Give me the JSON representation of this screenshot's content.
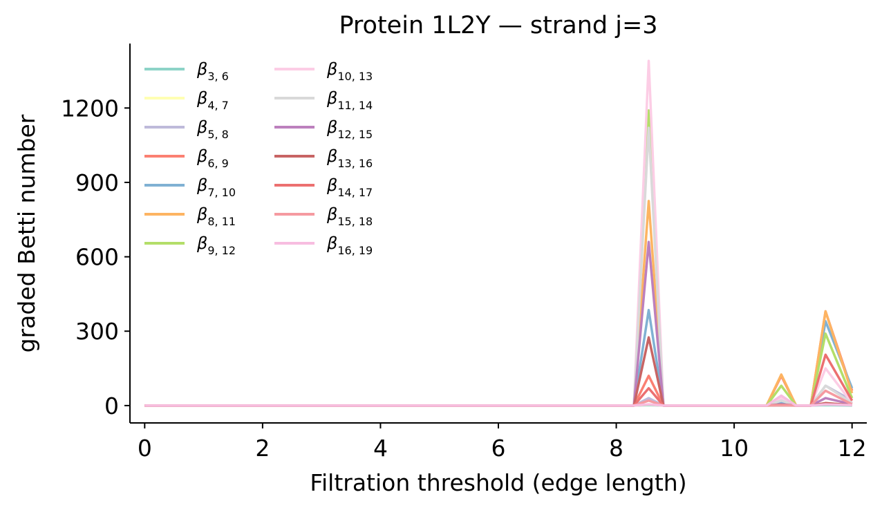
{
  "chart_data": {
    "type": "line",
    "title": "Protein 1L2Y — strand j=3",
    "xlabel": "Filtration threshold (edge length)",
    "ylabel": "graded Betti number",
    "xlim": [
      -0.25,
      12.25
    ],
    "ylim": [
      -70,
      1460
    ],
    "xticks": [
      0,
      2,
      4,
      6,
      8,
      10,
      12
    ],
    "yticks": [
      0,
      300,
      600,
      900,
      1200
    ],
    "grid": false,
    "legend_position": "top-left",
    "x": [
      0,
      8.3,
      8.55,
      8.8,
      10.55,
      10.8,
      11.05,
      11.3,
      11.55,
      12.0
    ],
    "series": [
      {
        "name": "β",
        "sub": "3, 6",
        "color": "#8dd3c7",
        "values": [
          0,
          0,
          2,
          0,
          0,
          0,
          0,
          0,
          2,
          0
        ]
      },
      {
        "name": "β",
        "sub": "4, 7",
        "color": "#ffffb3",
        "values": [
          0,
          0,
          4,
          0,
          0,
          2,
          0,
          0,
          10,
          2
        ]
      },
      {
        "name": "β",
        "sub": "5, 8",
        "color": "#bebada",
        "values": [
          0,
          0,
          30,
          0,
          0,
          8,
          0,
          0,
          80,
          20
        ]
      },
      {
        "name": "β",
        "sub": "6, 9",
        "color": "#fb8072",
        "values": [
          0,
          0,
          120,
          0,
          0,
          120,
          0,
          0,
          380,
          60
        ]
      },
      {
        "name": "β",
        "sub": "7, 10",
        "color": "#80b1d3",
        "values": [
          0,
          0,
          385,
          0,
          0,
          10,
          0,
          0,
          340,
          70
        ]
      },
      {
        "name": "β",
        "sub": "8, 11",
        "color": "#fdb462",
        "values": [
          0,
          0,
          825,
          0,
          0,
          125,
          0,
          0,
          380,
          50
        ]
      },
      {
        "name": "β",
        "sub": "9, 12",
        "color": "#b3de69",
        "values": [
          0,
          0,
          1190,
          0,
          0,
          80,
          0,
          0,
          290,
          30
        ]
      },
      {
        "name": "β",
        "sub": "10, 13",
        "color": "#fccde5",
        "values": [
          0,
          0,
          1390,
          0,
          0,
          30,
          0,
          0,
          150,
          10
        ]
      },
      {
        "name": "β",
        "sub": "11, 14",
        "color": "#d9d9d9",
        "values": [
          0,
          0,
          1120,
          0,
          0,
          20,
          0,
          0,
          80,
          10
        ]
      },
      {
        "name": "β",
        "sub": "12, 15",
        "color": "#bc80bd",
        "values": [
          0,
          0,
          660,
          0,
          0,
          5,
          0,
          0,
          30,
          5
        ]
      },
      {
        "name": "β",
        "sub": "13, 16",
        "color": "#c86464",
        "values": [
          0,
          0,
          275,
          0,
          0,
          3,
          0,
          0,
          10,
          2
        ]
      },
      {
        "name": "β",
        "sub": "14, 17",
        "color": "#ec7070",
        "values": [
          0,
          0,
          70,
          0,
          0,
          2,
          0,
          0,
          205,
          20
        ]
      },
      {
        "name": "β",
        "sub": "15, 18",
        "color": "#f59aa0",
        "values": [
          0,
          0,
          20,
          0,
          0,
          1,
          0,
          0,
          60,
          5
        ]
      },
      {
        "name": "β",
        "sub": "16, 19",
        "color": "#f7bde0",
        "values": [
          0,
          0,
          5,
          0,
          0,
          40,
          0,
          0,
          5,
          2
        ]
      }
    ]
  }
}
